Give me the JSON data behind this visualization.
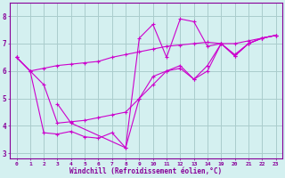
{
  "bg_color": "#d4f0f0",
  "line_color": "#cc00cc",
  "grid_color": "#aacccc",
  "axis_color": "#880099",
  "xlabel": "Windchill (Refroidissement éolien,°C)",
  "xlim": [
    -0.5,
    23.5
  ],
  "ylim": [
    2.8,
    8.5
  ],
  "xtick_labels": [
    "0",
    "1",
    "2",
    "3",
    "4",
    "5",
    "6",
    "7",
    "8",
    "9",
    "10",
    "11",
    "12",
    "13",
    "14",
    "19",
    "20",
    "21",
    "22",
    "23"
  ],
  "yticks": [
    3,
    4,
    5,
    6,
    7,
    8
  ],
  "gap_start": 14.5,
  "gap_end": 18.5,
  "series": [
    {
      "x": [
        0,
        1,
        2,
        3,
        4,
        5,
        6,
        7,
        8,
        9,
        10,
        11,
        12,
        13,
        14,
        19,
        20,
        21,
        22,
        23
      ],
      "y": [
        6.5,
        6.0,
        6.1,
        6.2,
        6.25,
        6.3,
        6.35,
        6.5,
        6.6,
        6.7,
        6.8,
        6.9,
        6.95,
        7.0,
        7.05,
        7.0,
        7.0,
        7.1,
        7.2,
        7.3
      ]
    },
    {
      "x": [
        0,
        1,
        2,
        3,
        4,
        5,
        6,
        7,
        8,
        9,
        10,
        11,
        12,
        13,
        14,
        19,
        20,
        21,
        22,
        23
      ],
      "y": [
        6.5,
        6.0,
        5.5,
        4.1,
        4.15,
        4.2,
        4.3,
        4.4,
        4.5,
        5.0,
        5.5,
        6.0,
        6.2,
        5.7,
        6.2,
        7.0,
        6.6,
        7.0,
        7.2,
        7.3
      ]
    },
    {
      "x": [
        3,
        4,
        8,
        9,
        10,
        11,
        12,
        13,
        14,
        19,
        20,
        21,
        22,
        23
      ],
      "y": [
        4.8,
        4.1,
        3.2,
        7.2,
        7.7,
        6.5,
        7.9,
        7.8,
        6.9,
        7.0,
        6.55,
        7.0,
        7.2,
        7.3
      ]
    },
    {
      "x": [
        0,
        1,
        2,
        3,
        4,
        5,
        6,
        7,
        8,
        9,
        10,
        11,
        12,
        13,
        14,
        19,
        20,
        21,
        22,
        23
      ],
      "y": [
        6.5,
        6.0,
        3.75,
        3.7,
        3.8,
        3.6,
        3.55,
        3.75,
        3.2,
        5.0,
        5.8,
        6.0,
        6.1,
        5.7,
        6.0,
        7.0,
        6.55,
        7.0,
        7.2,
        7.3
      ]
    }
  ]
}
